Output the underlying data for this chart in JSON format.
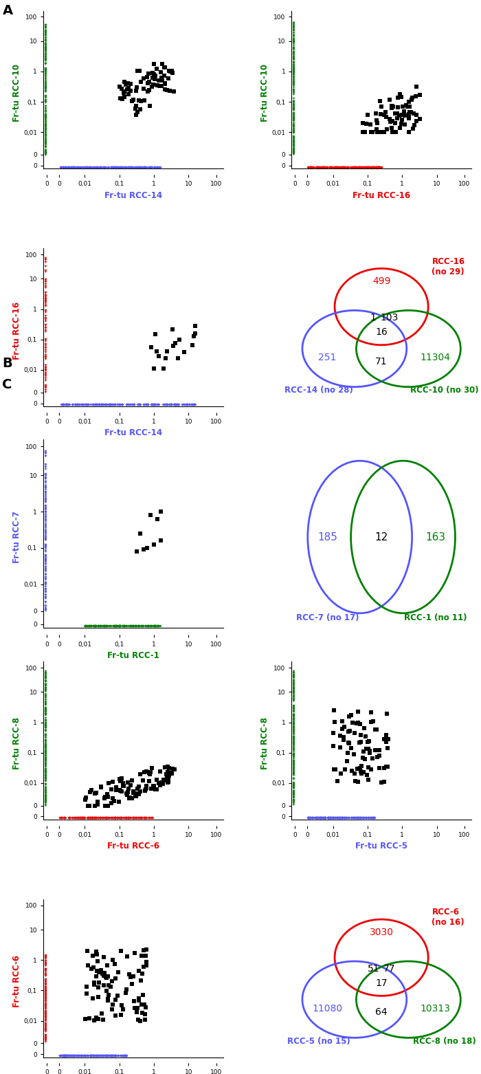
{
  "green": "#008000",
  "blue": "#5555FF",
  "red": "#EE0000",
  "black": "#000000",
  "panel_A_venn": {
    "c1": "#EE0000",
    "c2": "#5555FF",
    "c3": "#008000",
    "n1": 499,
    "n12": 1,
    "n13": 103,
    "n123": 16,
    "n23": 71,
    "n2": 251,
    "n3": 11304,
    "l1": "RCC-16\n(no 29)",
    "l2": "RCC-14 (no 28)",
    "l3": "RCC-10 (no 30)"
  },
  "panel_B_venn": {
    "c1": "#5555FF",
    "c2": "#008000",
    "n1": 185,
    "n12": 12,
    "n2": 163,
    "l1": "RCC-7 (no 17)",
    "l2": "RCC-1 (no 11)"
  },
  "panel_C_venn": {
    "c1": "#EE0000",
    "c2": "#5555FF",
    "c3": "#008000",
    "n1": 3030,
    "n12": 51,
    "n13": 77,
    "n123": 17,
    "n23": 64,
    "n2": 11080,
    "n3": 10313,
    "l1": "RCC-6\n(no 16)",
    "l2": "RCC-5 (no 15)",
    "l3": "RCC-8 (no 18)"
  },
  "tick_labels": [
    "0",
    "0",
    "0,01",
    "0,1",
    "1",
    "10",
    "100"
  ],
  "tick_pos": [
    0.0,
    0.18,
    0.55,
    1.05,
    1.55,
    2.05,
    2.45
  ]
}
